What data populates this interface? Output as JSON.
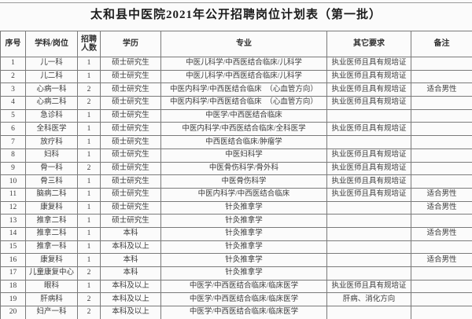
{
  "page": {
    "title": "太和县中医院2021年公开招聘岗位计划表（第一批）"
  },
  "colors": {
    "border": "#7a7a7a",
    "text": "#3b3b3b",
    "title_text": "#1d1d1d",
    "background": "#fbfbfb"
  },
  "table": {
    "headers": [
      "序号",
      "学科/岗位",
      "招聘人数",
      "学历",
      "专业",
      "其它要求",
      "备注"
    ],
    "column_keys": [
      "serial",
      "department",
      "count",
      "education",
      "major",
      "requirements",
      "notes"
    ],
    "rows": [
      [
        "1",
        "儿一科",
        "1",
        "硕士研究生",
        "中医儿科学/中西医结合临床/儿科学",
        "执业医师且具有规培证",
        ""
      ],
      [
        "2",
        "儿二科",
        "1",
        "硕士研究生",
        "中医儿科学/中西医结合临床/儿科学",
        "执业医师且具有规培证",
        ""
      ],
      [
        "3",
        "心病一科",
        "2",
        "硕士研究生",
        "中医内科学/中西医结合临床　（心血管方向）",
        "执业医师且具有规培证",
        "适合男性"
      ],
      [
        "4",
        "心病二科",
        "2",
        "硕士研究生",
        "中医内科学/中西医结合临床　（心血管方向）",
        "执业医师且具有规培证",
        ""
      ],
      [
        "5",
        "急诊科",
        "1",
        "硕士研究生",
        "中医学/中西医结合临床",
        "",
        ""
      ],
      [
        "6",
        "全科医学",
        "1",
        "硕士研究生",
        "中医内科学/中西医结合临床/全科医学",
        "执业医师且具有规培证",
        ""
      ],
      [
        "7",
        "放疗科",
        "1",
        "硕士研究生",
        "中西医结合临床/肿瘤学",
        "",
        ""
      ],
      [
        "8",
        "妇科",
        "1",
        "硕士研究生",
        "中医妇科学",
        "执业医师且具有规培证",
        ""
      ],
      [
        "9",
        "骨一科",
        "2",
        "硕士研究生",
        "中医骨伤科学/骨外科",
        "执业医师且具有规培证",
        ""
      ],
      [
        "10",
        "骨三科",
        "1",
        "硕士研究生",
        "中医骨伤科学",
        "执业医师且具有规培证",
        ""
      ],
      [
        "11",
        "脑病二科",
        "1",
        "硕士研究生",
        "中医内科学/中西医结合临床",
        "执业医师且具有规培证",
        "适合男性"
      ],
      [
        "12",
        "康复科",
        "1",
        "硕士研究生",
        "针灸推拿学",
        "",
        "适合男性"
      ],
      [
        "13",
        "推拿二科",
        "1",
        "硕士研究生",
        "针灸推拿学",
        "",
        ""
      ],
      [
        "14",
        "推拿二科",
        "1",
        "本科",
        "针灸推拿学",
        "",
        "适合男性"
      ],
      [
        "15",
        "推拿一科",
        "1",
        "本科及以上",
        "针灸推拿学",
        "",
        ""
      ],
      [
        "16",
        "康复科",
        "1",
        "本科",
        "针灸推拿学",
        "",
        "适合男性"
      ],
      [
        "17",
        "儿童康复中心",
        "2",
        "本科",
        "针灸推拿学",
        "",
        ""
      ],
      [
        "18",
        "眼科",
        "1",
        "本科及以上",
        "中医学/中西医结合临床/临床医学",
        "执业医师且具有规培证",
        ""
      ],
      [
        "19",
        "肝病科",
        "2",
        "本科及以上",
        "中医学/中西医结合临床/临床医学",
        "肝病、消化方向",
        ""
      ],
      [
        "20",
        "妇产一科",
        "2",
        "本科及以上",
        "中医学/中西医结合临床/临床医学",
        "",
        ""
      ]
    ]
  }
}
